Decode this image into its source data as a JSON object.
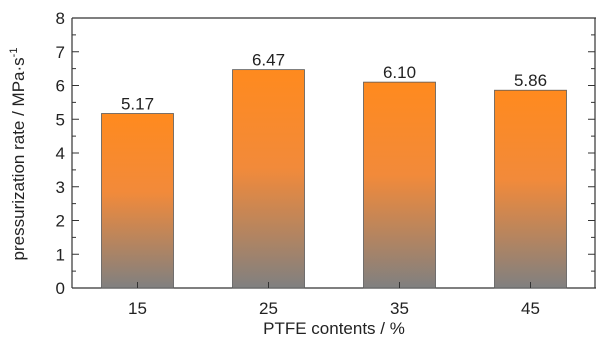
{
  "chart_data": {
    "type": "bar",
    "categories": [
      "15",
      "25",
      "35",
      "45"
    ],
    "values": [
      5.17,
      6.47,
      6.1,
      5.86
    ],
    "value_labels": [
      "5.17",
      "6.47",
      "6.10",
      "5.86"
    ],
    "xlabel": "PTFE contents / %",
    "ylabel_main": "pressurization rate / MPa·s",
    "ylabel_sup": "-1",
    "ylim": [
      0,
      8
    ],
    "yticks": [
      0,
      1,
      2,
      3,
      4,
      5,
      6,
      7,
      8
    ],
    "grid": false,
    "legend": "none",
    "colors": {
      "bar_top": "#ff8a1e",
      "bar_mid": "#f28a3a",
      "bar_bottom": "#808080",
      "axis": "#333333"
    }
  }
}
